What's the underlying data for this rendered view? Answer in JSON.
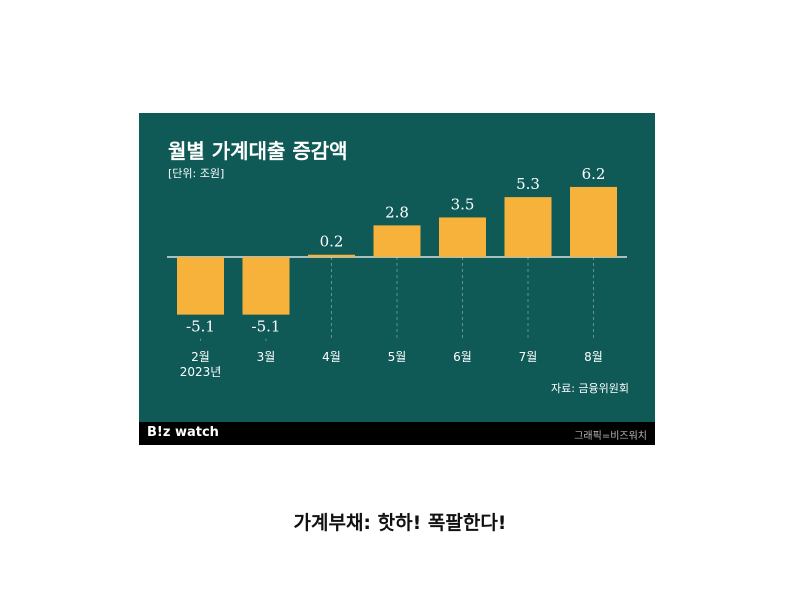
{
  "chart_data": {
    "type": "bar",
    "title": "월별 가계대출 증감액",
    "unit_label": "[단위: 조원]",
    "categories": [
      "2월\n2023년",
      "3월",
      "4월",
      "5월",
      "6월",
      "7월",
      "8월"
    ],
    "values": [
      -5.1,
      -5.1,
      0.2,
      2.8,
      3.5,
      5.3,
      6.2
    ],
    "value_labels": [
      "-5.1",
      "-5.1",
      "0.2",
      "2.8",
      "3.5",
      "5.3",
      "6.2"
    ],
    "xlabel": "",
    "ylabel": "",
    "ylim": [
      -5.1,
      6.2
    ],
    "grid": false,
    "source": "자료: 금융위원회",
    "colors": {
      "bar": "#f6b23b",
      "background": "#0f5a57",
      "text": "#ffffff"
    }
  },
  "branding": {
    "logo_main": "B",
    "logo_accent": "!z",
    "logo_tail": " watch",
    "credit": "그래픽=비즈워치"
  },
  "caption": "가계부채: 핫하! 폭팔한다!"
}
